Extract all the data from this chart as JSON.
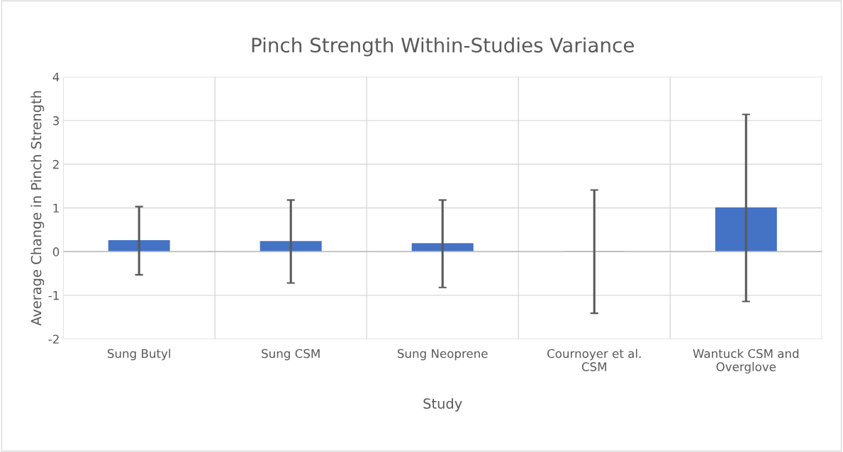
{
  "chart_data": {
    "type": "bar",
    "title": "Pinch Strength Within-Studies Variance",
    "xlabel": "Study",
    "ylabel": "Average Change in Pinch Strength",
    "categories": [
      "Sung Butyl",
      "Sung CSM",
      "Sung Neoprene",
      "Cournoyer et al. CSM",
      "Wantuck CSM and Overglove"
    ],
    "values": [
      0.25,
      0.23,
      0.18,
      0.0,
      1.0
    ],
    "errors": [
      0.78,
      0.95,
      1.0,
      1.41,
      2.14
    ],
    "color": "#4472c4",
    "ylim": [
      -2,
      4
    ],
    "yticks": [
      -2,
      -1,
      0,
      1,
      2,
      3,
      4
    ],
    "grid": true
  }
}
